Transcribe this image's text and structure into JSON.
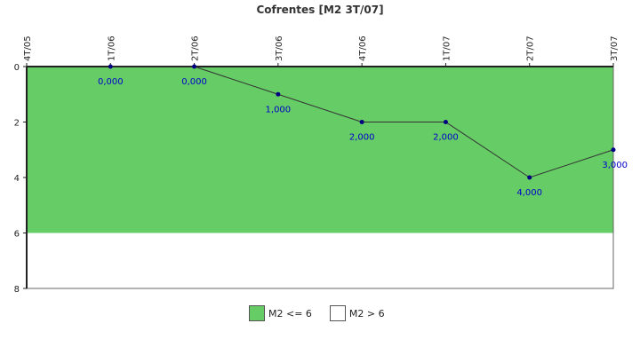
{
  "chart_data": {
    "type": "line",
    "title": "Cofrentes [M2 3T/07]",
    "categories": [
      "4T/05",
      "1T/06",
      "2T/06",
      "3T/06",
      "4T/06",
      "1T/07",
      "2T/07",
      "3T/07"
    ],
    "series": [
      {
        "values": [
          null,
          0,
          0,
          1,
          2,
          2,
          4,
          3
        ],
        "labels": [
          "",
          "0,000",
          "0,000",
          "1,000",
          "2,000",
          "2,000",
          "4,000",
          "3,000"
        ],
        "color": "#000080",
        "line_color": "#333333"
      }
    ],
    "yaxis": {
      "inverted": true,
      "ylim": [
        0,
        8
      ],
      "ticks": [
        "0",
        "2",
        "4",
        "6",
        "8"
      ],
      "tick_values": [
        0,
        2,
        4,
        6,
        8
      ]
    },
    "bands": [
      {
        "name": "M2 <= 6",
        "from": 0,
        "to": 6,
        "color": "#66cc66"
      },
      {
        "name": "M2 > 6",
        "from": 6,
        "to": 8,
        "color": "#ffffff"
      }
    ],
    "grid": false,
    "legend": "bottom"
  }
}
